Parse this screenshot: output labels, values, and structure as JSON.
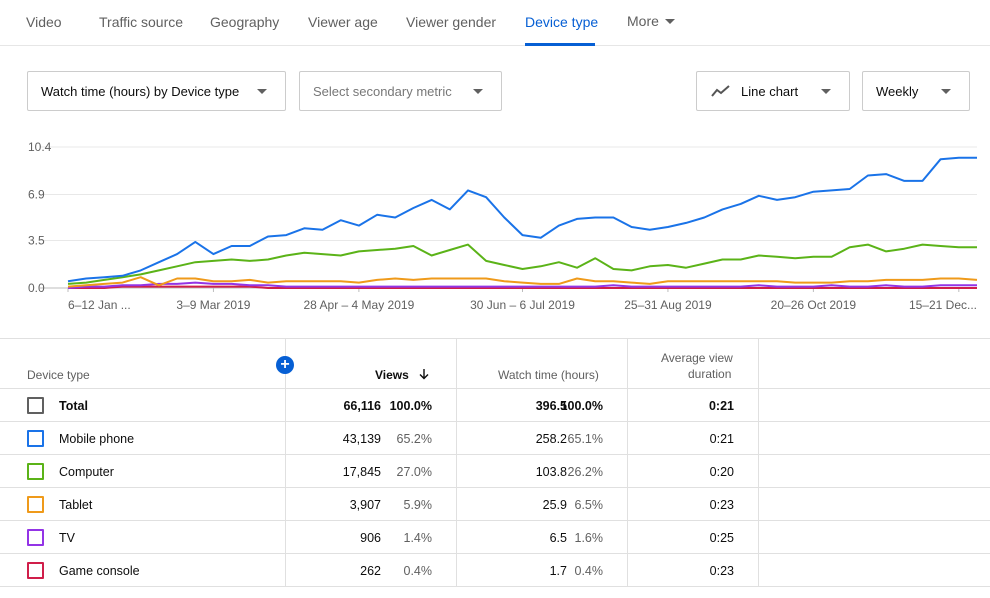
{
  "tabs": [
    {
      "label": "Video"
    },
    {
      "label": "Traffic source"
    },
    {
      "label": "Geography"
    },
    {
      "label": "Viewer age"
    },
    {
      "label": "Viewer gender"
    },
    {
      "label": "Device type"
    },
    {
      "label": "More"
    }
  ],
  "controls": {
    "primary_metric": "Watch time (hours) by Device type",
    "secondary_metric_placeholder": "Select secondary metric",
    "chart_type": "Line chart",
    "interval": "Weekly"
  },
  "chart_data": {
    "type": "line",
    "title": "",
    "xlabel": "",
    "ylabel": "",
    "ylim": [
      0,
      10.4
    ],
    "y_ticks": [
      "10.4",
      "6.9",
      "3.5",
      "0.0"
    ],
    "y_tick_values": [
      10.4,
      6.9,
      3.5,
      0.0
    ],
    "x_ticks": [
      {
        "index": 0,
        "label": "6–12 Jan ..."
      },
      {
        "index": 8,
        "label": "3–9 Mar 2019"
      },
      {
        "index": 16,
        "label": "28 Apr – 4 May 2019"
      },
      {
        "index": 25,
        "label": "30 Jun – 6 Jul 2019"
      },
      {
        "index": 33,
        "label": "25–31 Aug 2019"
      },
      {
        "index": 41,
        "label": "20–26 Oct 2019"
      },
      {
        "index": 49,
        "label": "15–21 Dec..."
      }
    ],
    "x_count": 51,
    "grid": true,
    "series": [
      {
        "name": "Mobile phone",
        "color": "#1a73e8",
        "values": [
          0.5,
          0.7,
          0.8,
          0.9,
          1.3,
          1.9,
          2.5,
          3.4,
          2.5,
          3.1,
          3.1,
          3.8,
          3.9,
          4.4,
          4.3,
          5.0,
          4.6,
          5.4,
          5.2,
          5.9,
          6.5,
          5.8,
          7.2,
          6.7,
          5.2,
          3.9,
          3.7,
          4.6,
          5.1,
          5.2,
          5.2,
          4.5,
          4.3,
          4.5,
          4.8,
          5.2,
          5.8,
          6.2,
          6.8,
          6.5,
          6.7,
          7.1,
          7.2,
          7.3,
          8.3,
          8.4,
          7.9,
          7.9,
          9.5,
          9.6,
          9.6
        ]
      },
      {
        "name": "Computer",
        "color": "#5bb318",
        "values": [
          0.3,
          0.4,
          0.6,
          0.8,
          1.0,
          1.3,
          1.6,
          1.9,
          2.0,
          2.1,
          2.0,
          2.1,
          2.4,
          2.6,
          2.5,
          2.4,
          2.7,
          2.8,
          2.9,
          3.1,
          2.4,
          2.8,
          3.2,
          2.0,
          1.7,
          1.4,
          1.6,
          1.9,
          1.5,
          2.2,
          1.4,
          1.3,
          1.6,
          1.7,
          1.5,
          1.8,
          2.1,
          2.1,
          2.4,
          2.3,
          2.2,
          2.3,
          2.3,
          3.0,
          3.2,
          2.7,
          2.9,
          3.2,
          3.1,
          3.0,
          3.0
        ]
      },
      {
        "name": "Tablet",
        "color": "#ef9a1a",
        "values": [
          0.1,
          0.2,
          0.3,
          0.4,
          0.8,
          0.2,
          0.7,
          0.7,
          0.5,
          0.5,
          0.6,
          0.4,
          0.5,
          0.5,
          0.5,
          0.5,
          0.4,
          0.6,
          0.7,
          0.6,
          0.7,
          0.7,
          0.7,
          0.7,
          0.5,
          0.4,
          0.3,
          0.3,
          0.7,
          0.5,
          0.5,
          0.4,
          0.3,
          0.5,
          0.5,
          0.5,
          0.5,
          0.5,
          0.5,
          0.5,
          0.4,
          0.4,
          0.4,
          0.5,
          0.5,
          0.6,
          0.6,
          0.6,
          0.7,
          0.7,
          0.6
        ]
      },
      {
        "name": "TV",
        "color": "#9334e6",
        "values": [
          0.0,
          0.1,
          0.1,
          0.2,
          0.2,
          0.3,
          0.3,
          0.4,
          0.3,
          0.3,
          0.2,
          0.2,
          0.1,
          0.1,
          0.1,
          0.1,
          0.1,
          0.1,
          0.1,
          0.1,
          0.1,
          0.1,
          0.1,
          0.1,
          0.1,
          0.1,
          0.1,
          0.1,
          0.1,
          0.1,
          0.2,
          0.1,
          0.1,
          0.1,
          0.1,
          0.1,
          0.1,
          0.1,
          0.2,
          0.1,
          0.1,
          0.1,
          0.2,
          0.1,
          0.1,
          0.2,
          0.1,
          0.1,
          0.2,
          0.2,
          0.2
        ]
      },
      {
        "name": "Game console",
        "color": "#d01e4a",
        "values": [
          0.0,
          0.0,
          0.0,
          0.1,
          0.1,
          0.1,
          0.1,
          0.1,
          0.1,
          0.1,
          0.1,
          0.0,
          0.0,
          0.0,
          0.0,
          0.0,
          0.0,
          0.0,
          0.0,
          0.0,
          0.0,
          0.0,
          0.0,
          0.0,
          0.0,
          0.0,
          0.0,
          0.0,
          0.0,
          0.0,
          0.0,
          0.0,
          0.0,
          0.0,
          0.0,
          0.0,
          0.0,
          0.0,
          0.0,
          0.0,
          0.0,
          0.0,
          0.0,
          0.0,
          0.0,
          0.0,
          0.0,
          0.0,
          0.0,
          0.0,
          0.0
        ]
      }
    ]
  },
  "table": {
    "headers": {
      "device_type": "Device type",
      "views": "Views",
      "views_sort_icon": "arrow-down-icon",
      "watch_time": "Watch time (hours)",
      "avg_view_line1": "Average view",
      "avg_view_line2": "duration"
    },
    "rows": [
      {
        "label": "Total",
        "views": "66,116",
        "views_pct": "100.0%",
        "watch": "396.5",
        "watch_pct": "100.0%",
        "avg": "0:21",
        "color": "#606060"
      },
      {
        "label": "Mobile phone",
        "views": "43,139",
        "views_pct": "65.2%",
        "watch": "258.2",
        "watch_pct": "65.1%",
        "avg": "0:21",
        "color": "#1a73e8"
      },
      {
        "label": "Computer",
        "views": "17,845",
        "views_pct": "27.0%",
        "watch": "103.8",
        "watch_pct": "26.2%",
        "avg": "0:20",
        "color": "#5bb318"
      },
      {
        "label": "Tablet",
        "views": "3,907",
        "views_pct": "5.9%",
        "watch": "25.9",
        "watch_pct": "6.5%",
        "avg": "0:23",
        "color": "#ef9a1a"
      },
      {
        "label": "TV",
        "views": "906",
        "views_pct": "1.4%",
        "watch": "6.5",
        "watch_pct": "1.6%",
        "avg": "0:25",
        "color": "#9334e6"
      },
      {
        "label": "Game console",
        "views": "262",
        "views_pct": "0.4%",
        "watch": "1.7",
        "watch_pct": "0.4%",
        "avg": "0:23",
        "color": "#d01e4a"
      }
    ]
  }
}
